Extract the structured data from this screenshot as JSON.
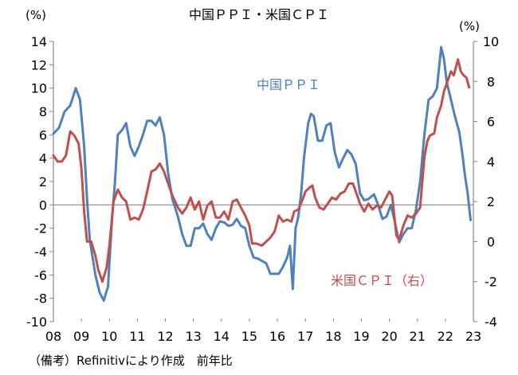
{
  "chart_data": {
    "type": "line",
    "title": "中国ＰＰＩ・米国ＣＰＩ",
    "left_axis": {
      "unit": "(%)",
      "ylim": [
        -10,
        14
      ],
      "ticks": [
        14,
        12,
        10,
        8,
        6,
        4,
        2,
        0,
        -2,
        -4,
        -6,
        -8,
        -10
      ]
    },
    "right_axis": {
      "unit": "(%)",
      "ylim": [
        -4,
        10
      ],
      "ticks": [
        10,
        8,
        6,
        4,
        2,
        0,
        -2,
        -4
      ]
    },
    "x_ticks": [
      "08",
      "09",
      "10",
      "11",
      "12",
      "13",
      "14",
      "15",
      "16",
      "17",
      "18",
      "19",
      "20",
      "21",
      "22",
      "23"
    ],
    "x_start": 2008.0,
    "x_end": 2023.0,
    "series": [
      {
        "name": "中国ＰＰＩ",
        "axis": "left",
        "color": "#4F81BD",
        "points": [
          [
            2008.0,
            6.1
          ],
          [
            2008.2,
            6.6
          ],
          [
            2008.4,
            8.0
          ],
          [
            2008.6,
            8.5
          ],
          [
            2008.8,
            10.0
          ],
          [
            2008.95,
            9.0
          ],
          [
            2009.1,
            5.0
          ],
          [
            2009.2,
            0.5
          ],
          [
            2009.3,
            -3.0
          ],
          [
            2009.5,
            -6.0
          ],
          [
            2009.65,
            -7.5
          ],
          [
            2009.8,
            -8.2
          ],
          [
            2009.95,
            -7.0
          ],
          [
            2010.1,
            -1.0
          ],
          [
            2010.2,
            2.0
          ],
          [
            2010.3,
            6.0
          ],
          [
            2010.45,
            6.4
          ],
          [
            2010.6,
            7.0
          ],
          [
            2010.75,
            5.0
          ],
          [
            2010.9,
            4.2
          ],
          [
            2011.05,
            5.0
          ],
          [
            2011.2,
            6.0
          ],
          [
            2011.35,
            7.2
          ],
          [
            2011.5,
            7.2
          ],
          [
            2011.65,
            6.8
          ],
          [
            2011.8,
            7.5
          ],
          [
            2011.95,
            6.0
          ],
          [
            2012.1,
            2.7
          ],
          [
            2012.25,
            0.5
          ],
          [
            2012.45,
            -1.0
          ],
          [
            2012.6,
            -2.5
          ],
          [
            2012.75,
            -3.5
          ],
          [
            2012.9,
            -3.5
          ],
          [
            2013.05,
            -2.0
          ],
          [
            2013.2,
            -2.0
          ],
          [
            2013.35,
            -1.6
          ],
          [
            2013.5,
            -2.5
          ],
          [
            2013.65,
            -3.0
          ],
          [
            2013.8,
            -2.0
          ],
          [
            2013.95,
            -1.4
          ],
          [
            2014.1,
            -1.5
          ],
          [
            2014.25,
            -1.8
          ],
          [
            2014.4,
            -1.7
          ],
          [
            2014.55,
            -1.2
          ],
          [
            2014.7,
            -1.8
          ],
          [
            2014.85,
            -2.0
          ],
          [
            2015.0,
            -3.5
          ],
          [
            2015.15,
            -4.5
          ],
          [
            2015.3,
            -4.6
          ],
          [
            2015.45,
            -4.8
          ],
          [
            2015.6,
            -5.0
          ],
          [
            2015.75,
            -5.9
          ],
          [
            2015.9,
            -5.9
          ],
          [
            2016.05,
            -5.9
          ],
          [
            2016.2,
            -5.3
          ],
          [
            2016.35,
            -4.5
          ],
          [
            2016.45,
            -3.5
          ],
          [
            2016.55,
            -7.2
          ],
          [
            2016.65,
            -2.0
          ],
          [
            2016.75,
            -1.0
          ],
          [
            2016.85,
            1.0
          ],
          [
            2016.95,
            4.0
          ],
          [
            2017.1,
            7.0
          ],
          [
            2017.2,
            7.8
          ],
          [
            2017.3,
            7.6
          ],
          [
            2017.45,
            5.5
          ],
          [
            2017.6,
            5.5
          ],
          [
            2017.75,
            6.8
          ],
          [
            2017.9,
            7.0
          ],
          [
            2018.05,
            4.5
          ],
          [
            2018.2,
            3.2
          ],
          [
            2018.35,
            4.0
          ],
          [
            2018.5,
            4.7
          ],
          [
            2018.65,
            4.3
          ],
          [
            2018.8,
            3.5
          ],
          [
            2018.95,
            1.0
          ],
          [
            2019.1,
            0.4
          ],
          [
            2019.25,
            0.5
          ],
          [
            2019.45,
            0.9
          ],
          [
            2019.6,
            0.0
          ],
          [
            2019.75,
            -1.2
          ],
          [
            2019.9,
            -1.0
          ],
          [
            2020.05,
            0.0
          ],
          [
            2020.2,
            -1.5
          ],
          [
            2020.35,
            -3.2
          ],
          [
            2020.5,
            -2.5
          ],
          [
            2020.65,
            -2.0
          ],
          [
            2020.8,
            -2.0
          ],
          [
            2020.95,
            -0.4
          ],
          [
            2021.1,
            2.0
          ],
          [
            2021.25,
            6.0
          ],
          [
            2021.4,
            9.0
          ],
          [
            2021.55,
            9.3
          ],
          [
            2021.7,
            10.0
          ],
          [
            2021.85,
            13.5
          ],
          [
            2021.95,
            12.5
          ],
          [
            2022.05,
            10.5
          ],
          [
            2022.2,
            9.0
          ],
          [
            2022.35,
            7.5
          ],
          [
            2022.5,
            6.2
          ],
          [
            2022.6,
            4.5
          ],
          [
            2022.7,
            2.5
          ],
          [
            2022.8,
            0.9
          ],
          [
            2022.9,
            -1.3
          ]
        ]
      },
      {
        "name": "米国ＣＰＩ（右）",
        "axis": "right",
        "color": "#C0504D",
        "points": [
          [
            2008.0,
            4.3
          ],
          [
            2008.15,
            4.0
          ],
          [
            2008.3,
            4.0
          ],
          [
            2008.45,
            4.3
          ],
          [
            2008.6,
            5.5
          ],
          [
            2008.75,
            5.3
          ],
          [
            2008.9,
            4.9
          ],
          [
            2009.0,
            3.7
          ],
          [
            2009.1,
            1.5
          ],
          [
            2009.2,
            0.0
          ],
          [
            2009.35,
            0.0
          ],
          [
            2009.5,
            -0.7
          ],
          [
            2009.6,
            -1.4
          ],
          [
            2009.75,
            -2.0
          ],
          [
            2009.9,
            -1.3
          ],
          [
            2010.0,
            -0.2
          ],
          [
            2010.15,
            2.0
          ],
          [
            2010.3,
            2.6
          ],
          [
            2010.45,
            2.2
          ],
          [
            2010.6,
            2.0
          ],
          [
            2010.75,
            1.1
          ],
          [
            2010.9,
            1.2
          ],
          [
            2011.05,
            1.1
          ],
          [
            2011.2,
            1.6
          ],
          [
            2011.35,
            2.5
          ],
          [
            2011.5,
            3.5
          ],
          [
            2011.65,
            3.6
          ],
          [
            2011.8,
            3.9
          ],
          [
            2011.95,
            3.5
          ],
          [
            2012.1,
            2.9
          ],
          [
            2012.25,
            2.3
          ],
          [
            2012.45,
            1.7
          ],
          [
            2012.6,
            1.4
          ],
          [
            2012.75,
            1.7
          ],
          [
            2012.9,
            2.2
          ],
          [
            2013.05,
            1.6
          ],
          [
            2013.2,
            2.0
          ],
          [
            2013.35,
            1.1
          ],
          [
            2013.5,
            1.8
          ],
          [
            2013.65,
            2.0
          ],
          [
            2013.8,
            1.2
          ],
          [
            2013.95,
            1.2
          ],
          [
            2014.1,
            1.5
          ],
          [
            2014.25,
            1.1
          ],
          [
            2014.4,
            2.0
          ],
          [
            2014.55,
            2.1
          ],
          [
            2014.7,
            1.7
          ],
          [
            2014.85,
            1.3
          ],
          [
            2015.0,
            0.8
          ],
          [
            2015.1,
            -0.1
          ],
          [
            2015.25,
            -0.1
          ],
          [
            2015.45,
            -0.2
          ],
          [
            2015.6,
            0.0
          ],
          [
            2015.75,
            0.2
          ],
          [
            2015.9,
            0.5
          ],
          [
            2016.05,
            1.3
          ],
          [
            2016.2,
            1.0
          ],
          [
            2016.35,
            1.1
          ],
          [
            2016.5,
            1.0
          ],
          [
            2016.6,
            1.5
          ],
          [
            2016.75,
            1.6
          ],
          [
            2016.9,
            2.1
          ],
          [
            2017.0,
            2.5
          ],
          [
            2017.15,
            2.7
          ],
          [
            2017.25,
            2.8
          ],
          [
            2017.35,
            2.2
          ],
          [
            2017.5,
            1.7
          ],
          [
            2017.65,
            1.6
          ],
          [
            2017.8,
            1.9
          ],
          [
            2017.95,
            2.2
          ],
          [
            2018.1,
            2.1
          ],
          [
            2018.25,
            2.4
          ],
          [
            2018.4,
            2.5
          ],
          [
            2018.55,
            2.9
          ],
          [
            2018.7,
            2.9
          ],
          [
            2018.85,
            2.3
          ],
          [
            2018.95,
            1.9
          ],
          [
            2019.1,
            1.5
          ],
          [
            2019.25,
            1.9
          ],
          [
            2019.4,
            1.6
          ],
          [
            2019.55,
            1.8
          ],
          [
            2019.7,
            1.7
          ],
          [
            2019.85,
            2.1
          ],
          [
            2020.0,
            2.5
          ],
          [
            2020.1,
            2.3
          ],
          [
            2020.25,
            0.3
          ],
          [
            2020.35,
            0.1
          ],
          [
            2020.5,
            0.8
          ],
          [
            2020.65,
            1.3
          ],
          [
            2020.8,
            1.2
          ],
          [
            2020.95,
            1.4
          ],
          [
            2021.1,
            1.7
          ],
          [
            2021.25,
            4.2
          ],
          [
            2021.35,
            5.0
          ],
          [
            2021.45,
            5.3
          ],
          [
            2021.6,
            5.4
          ],
          [
            2021.7,
            6.2
          ],
          [
            2021.85,
            6.8
          ],
          [
            2021.95,
            7.5
          ],
          [
            2022.05,
            7.9
          ],
          [
            2022.2,
            8.5
          ],
          [
            2022.3,
            8.3
          ],
          [
            2022.45,
            9.1
          ],
          [
            2022.55,
            8.5
          ],
          [
            2022.65,
            8.3
          ],
          [
            2022.75,
            8.2
          ],
          [
            2022.85,
            7.7
          ]
        ]
      }
    ],
    "annotations": {
      "ppi_label": "中国ＰＰＩ",
      "cpi_label": "米国ＣＰＩ（右）"
    },
    "note": "（備考）Refinitivにより作成　前年比"
  }
}
